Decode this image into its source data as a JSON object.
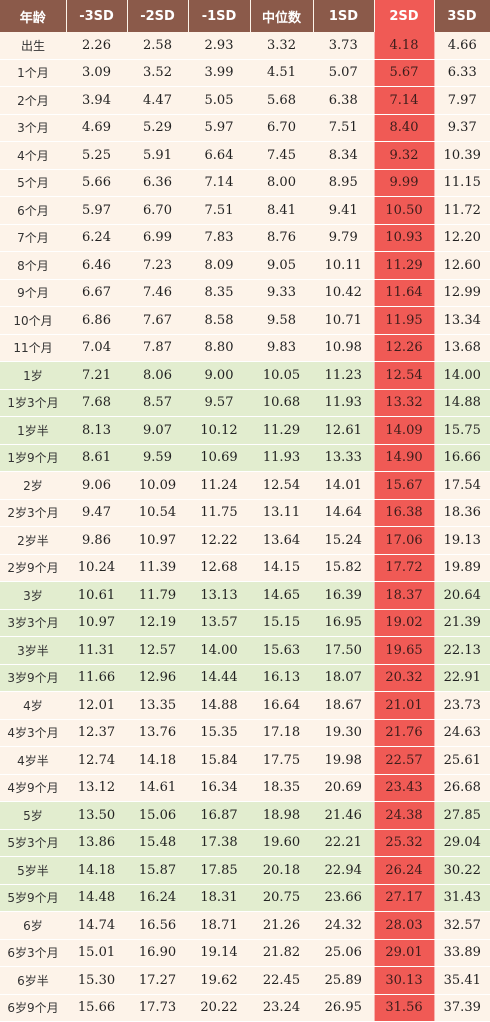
{
  "headers": [
    "年龄",
    "-3SD",
    "-2SD",
    "-1SD",
    "中位数",
    "1SD",
    "2SD",
    "3SD"
  ],
  "rows": [
    {
      "age": "出生",
      "values": [
        "2.26",
        "2.58",
        "2.93",
        "3.32",
        "3.73",
        "4.18",
        "4.66"
      ],
      "band": "a"
    },
    {
      "age": "1个月",
      "values": [
        "3.09",
        "3.52",
        "3.99",
        "4.51",
        "5.07",
        "5.67",
        "6.33"
      ],
      "band": "a"
    },
    {
      "age": "2个月",
      "values": [
        "3.94",
        "4.47",
        "5.05",
        "5.68",
        "6.38",
        "7.14",
        "7.97"
      ],
      "band": "a"
    },
    {
      "age": "3个月",
      "values": [
        "4.69",
        "5.29",
        "5.97",
        "6.70",
        "7.51",
        "8.40",
        "9.37"
      ],
      "band": "a"
    },
    {
      "age": "4个月",
      "values": [
        "5.25",
        "5.91",
        "6.64",
        "7.45",
        "8.34",
        "9.32",
        "10.39"
      ],
      "band": "a"
    },
    {
      "age": "5个月",
      "values": [
        "5.66",
        "6.36",
        "7.14",
        "8.00",
        "8.95",
        "9.99",
        "11.15"
      ],
      "band": "a"
    },
    {
      "age": "6个月",
      "values": [
        "5.97",
        "6.70",
        "7.51",
        "8.41",
        "9.41",
        "10.50",
        "11.72"
      ],
      "band": "a"
    },
    {
      "age": "7个月",
      "values": [
        "6.24",
        "6.99",
        "7.83",
        "8.76",
        "9.79",
        "10.93",
        "12.20"
      ],
      "band": "a"
    },
    {
      "age": "8个月",
      "values": [
        "6.46",
        "7.23",
        "8.09",
        "9.05",
        "10.11",
        "11.29",
        "12.60"
      ],
      "band": "a"
    },
    {
      "age": "9个月",
      "values": [
        "6.67",
        "7.46",
        "8.35",
        "9.33",
        "10.42",
        "11.64",
        "12.99"
      ],
      "band": "a"
    },
    {
      "age": "10个月",
      "values": [
        "6.86",
        "7.67",
        "8.58",
        "9.58",
        "10.71",
        "11.95",
        "13.34"
      ],
      "band": "a"
    },
    {
      "age": "11个月",
      "values": [
        "7.04",
        "7.87",
        "8.80",
        "9.83",
        "10.98",
        "12.26",
        "13.68"
      ],
      "band": "a"
    },
    {
      "age": "1岁",
      "values": [
        "7.21",
        "8.06",
        "9.00",
        "10.05",
        "11.23",
        "12.54",
        "14.00"
      ],
      "band": "b"
    },
    {
      "age": "1岁3个月",
      "values": [
        "7.68",
        "8.57",
        "9.57",
        "10.68",
        "11.93",
        "13.32",
        "14.88"
      ],
      "band": "b"
    },
    {
      "age": "1岁半",
      "values": [
        "8.13",
        "9.07",
        "10.12",
        "11.29",
        "12.61",
        "14.09",
        "15.75"
      ],
      "band": "b"
    },
    {
      "age": "1岁9个月",
      "values": [
        "8.61",
        "9.59",
        "10.69",
        "11.93",
        "13.33",
        "14.90",
        "16.66"
      ],
      "band": "b"
    },
    {
      "age": "2岁",
      "values": [
        "9.06",
        "10.09",
        "11.24",
        "12.54",
        "14.01",
        "15.67",
        "17.54"
      ],
      "band": "a"
    },
    {
      "age": "2岁3个月",
      "values": [
        "9.47",
        "10.54",
        "11.75",
        "13.11",
        "14.64",
        "16.38",
        "18.36"
      ],
      "band": "a"
    },
    {
      "age": "2岁半",
      "values": [
        "9.86",
        "10.97",
        "12.22",
        "13.64",
        "15.24",
        "17.06",
        "19.13"
      ],
      "band": "a"
    },
    {
      "age": "2岁9个月",
      "values": [
        "10.24",
        "11.39",
        "12.68",
        "14.15",
        "15.82",
        "17.72",
        "19.89"
      ],
      "band": "a"
    },
    {
      "age": "3岁",
      "values": [
        "10.61",
        "11.79",
        "13.13",
        "14.65",
        "16.39",
        "18.37",
        "20.64"
      ],
      "band": "b"
    },
    {
      "age": "3岁3个月",
      "values": [
        "10.97",
        "12.19",
        "13.57",
        "15.15",
        "16.95",
        "19.02",
        "21.39"
      ],
      "band": "b"
    },
    {
      "age": "3岁半",
      "values": [
        "11.31",
        "12.57",
        "14.00",
        "15.63",
        "17.50",
        "19.65",
        "22.13"
      ],
      "band": "b"
    },
    {
      "age": "3岁9个月",
      "values": [
        "11.66",
        "12.96",
        "14.44",
        "16.13",
        "18.07",
        "20.32",
        "22.91"
      ],
      "band": "b"
    },
    {
      "age": "4岁",
      "values": [
        "12.01",
        "13.35",
        "14.88",
        "16.64",
        "18.67",
        "21.01",
        "23.73"
      ],
      "band": "a"
    },
    {
      "age": "4岁3个月",
      "values": [
        "12.37",
        "13.76",
        "15.35",
        "17.18",
        "19.30",
        "21.76",
        "24.63"
      ],
      "band": "a"
    },
    {
      "age": "4岁半",
      "values": [
        "12.74",
        "14.18",
        "15.84",
        "17.75",
        "19.98",
        "22.57",
        "25.61"
      ],
      "band": "a"
    },
    {
      "age": "4岁9个月",
      "values": [
        "13.12",
        "14.61",
        "16.34",
        "18.35",
        "20.69",
        "23.43",
        "26.68"
      ],
      "band": "a"
    },
    {
      "age": "5岁",
      "values": [
        "13.50",
        "15.06",
        "16.87",
        "18.98",
        "21.46",
        "24.38",
        "27.85"
      ],
      "band": "b"
    },
    {
      "age": "5岁3个月",
      "values": [
        "13.86",
        "15.48",
        "17.38",
        "19.60",
        "22.21",
        "25.32",
        "29.04"
      ],
      "band": "b"
    },
    {
      "age": "5岁半",
      "values": [
        "14.18",
        "15.87",
        "17.85",
        "20.18",
        "22.94",
        "26.24",
        "30.22"
      ],
      "band": "b"
    },
    {
      "age": "5岁9个月",
      "values": [
        "14.48",
        "16.24",
        "18.31",
        "20.75",
        "23.66",
        "27.17",
        "31.43"
      ],
      "band": "b"
    },
    {
      "age": "6岁",
      "values": [
        "14.74",
        "16.56",
        "18.71",
        "21.26",
        "24.32",
        "28.03",
        "32.57"
      ],
      "band": "a"
    },
    {
      "age": "6岁3个月",
      "values": [
        "15.01",
        "16.90",
        "19.14",
        "21.82",
        "25.06",
        "29.01",
        "33.89"
      ],
      "band": "a"
    },
    {
      "age": "6岁半",
      "values": [
        "15.30",
        "17.27",
        "19.62",
        "22.45",
        "25.89",
        "30.13",
        "35.41"
      ],
      "band": "a"
    },
    {
      "age": "6岁9个月",
      "values": [
        "15.66",
        "17.73",
        "20.22",
        "23.24",
        "26.95",
        "31.56",
        "37.39"
      ],
      "band": "a"
    }
  ],
  "highlight_column_index": 6,
  "colors": {
    "header_bg": "#8b5a4a",
    "highlight": "#f05a55",
    "band_a": "#fdf3e9",
    "band_b": "#e2edcf"
  }
}
